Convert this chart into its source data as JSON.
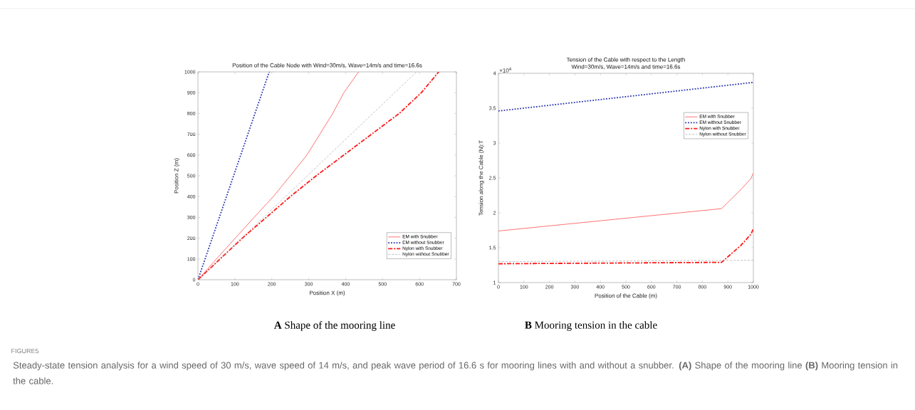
{
  "chart_data": [
    {
      "type": "line",
      "title": "Position of the Cable Node with Wind=30m/s, Wave=14m/s and time=16.6s",
      "xlabel": "Position X (m)",
      "ylabel": "Position Z (m)",
      "xlim": [
        0,
        700
      ],
      "ylim": [
        0,
        1000
      ],
      "xticks": [
        0,
        100,
        200,
        300,
        400,
        500,
        600,
        700
      ],
      "yticks": [
        0,
        100,
        200,
        300,
        400,
        500,
        600,
        700,
        800,
        900,
        1000
      ],
      "legend": "bottom right",
      "grid": false,
      "series": [
        {
          "name": "EM with Snubber",
          "color": "#ff5050",
          "line_style": "solid",
          "x": [
            0,
            50,
            101,
            152,
            204,
            250,
            295,
            330,
            365,
            395,
            435
          ],
          "values": [
            0,
            100,
            200,
            300,
            400,
            500,
            600,
            700,
            800,
            900,
            1000
          ]
        },
        {
          "name": "EM without Snubber",
          "color": "#2b35b0",
          "line_style": "dotted",
          "x": [
            0,
            193
          ],
          "values": [
            0,
            1000
          ]
        },
        {
          "name": "Nylon with Snubber",
          "color": "#ff1a1a",
          "line_style": "dashdot",
          "x": [
            0,
            60,
            120,
            185,
            250,
            320,
            395,
            470,
            545,
            605,
            652
          ],
          "values": [
            0,
            100,
            200,
            300,
            400,
            500,
            600,
            700,
            800,
            900,
            1000
          ]
        },
        {
          "name": "Nylon without Snubber",
          "color": "#999999",
          "line_style": "dashed",
          "x": [
            0,
            592
          ],
          "values": [
            0,
            1000
          ]
        }
      ],
      "annotations": [
        "**A** Shape of the mooring line"
      ]
    },
    {
      "type": "line",
      "title": "Tension of the Cable with respect to the  Length",
      "subtitle": "Wind=30m/s, Wave=14m/s and time=16.6s",
      "xlabel": "Position of the Cable (m)",
      "ylabel": "Tension along the Cable (N):T",
      "xlim": [
        0,
        1000
      ],
      "ylim": [
        1,
        4
      ],
      "xticks": [
        0,
        100,
        200,
        300,
        400,
        500,
        600,
        700,
        800,
        900,
        1000
      ],
      "yticks": [
        1,
        1.5,
        2,
        2.5,
        3,
        3.5,
        4
      ],
      "legend": "right",
      "grid": false,
      "series": [
        {
          "name": "EM with Snubber",
          "color": "#ff5050",
          "line_style": "solid",
          "x": [
            0,
            875,
            900,
            950,
            990,
            1000
          ],
          "values": [
            1.74,
            2.06,
            2.15,
            2.33,
            2.49,
            2.57
          ]
        },
        {
          "name": "EM without Snubber",
          "color": "#2b35b0",
          "line_style": "dotted",
          "x": [
            0,
            1000
          ],
          "values": [
            3.46,
            3.87
          ]
        },
        {
          "name": "Nylon with Snubber",
          "color": "#ff1a1a",
          "line_style": "dashdot",
          "x": [
            0,
            875,
            900,
            950,
            990,
            1000
          ],
          "values": [
            1.27,
            1.29,
            1.37,
            1.53,
            1.69,
            1.77
          ]
        },
        {
          "name": "Nylon without Snubber",
          "color": "#999999",
          "line_style": "dashed",
          "x": [
            0,
            1000
          ],
          "values": [
            1.3,
            1.32
          ]
        }
      ],
      "annotations": [
        "×10$^{4}$",
        "**B** Mooring tension in the cable",
        "FIGURE5",
        "Steady-state tension analysis for a wind speed of 30 m/s, wave speed of 14 m/s, and peak wave period of 16.6 s for mooring lines with and without a snubber. **(A)** Shape of the mooring line **(B)** Mooring tension in the cable."
      ]
    }
  ]
}
